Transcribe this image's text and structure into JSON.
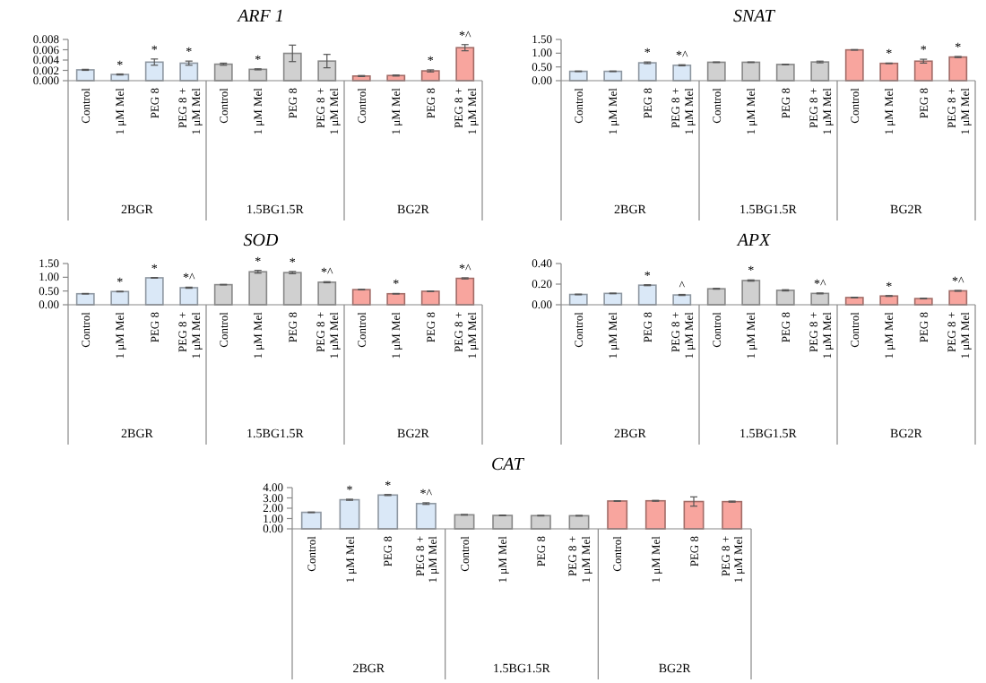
{
  "chart_data": [
    {
      "type": "bar",
      "title": "ARF 1",
      "categories": [
        "Control",
        "1 μM Mel",
        "PEG 8",
        "PEG 8 + 1 μM Mel",
        "Control",
        "1 μM Mel",
        "PEG 8",
        "PEG 8 + 1 μM Mel",
        "Control",
        "1 μM Mel",
        "PEG 8",
        "PEG 8 + 1 μM Mel"
      ],
      "values": [
        0.0021,
        0.0012,
        0.0036,
        0.0034,
        0.0032,
        0.0022,
        0.0053,
        0.0038,
        0.0009,
        0.001,
        0.0019,
        0.0064
      ],
      "errors": [
        0.0001,
        0.0001,
        0.0006,
        0.0004,
        0.0002,
        0.0001,
        0.0016,
        0.0013,
        0.0001,
        0.0001,
        0.0002,
        0.0006
      ],
      "value_labels": [
        null,
        "*",
        "*",
        "*",
        null,
        "*",
        null,
        null,
        null,
        null,
        "*",
        "*^"
      ],
      "colors": [
        "#dae8f7",
        "#dae8f7",
        "#dae8f7",
        "#dae8f7",
        "#d0d0d0",
        "#d0d0d0",
        "#d0d0d0",
        "#d0d0d0",
        "#f8a59e",
        "#f8a59e",
        "#f8a59e",
        "#f8a59e"
      ],
      "ylim": [
        0,
        0.008
      ],
      "yticks": [
        {
          "value": 0,
          "label": "0.000"
        },
        {
          "value": 0.002,
          "label": "0.002"
        },
        {
          "value": 0.004,
          "label": "0.004"
        },
        {
          "value": 0.006,
          "label": "0.006"
        },
        {
          "value": 0.008,
          "label": "0.008"
        }
      ],
      "annotations": [
        "2BGR",
        "1.5BG1.5R",
        "BG2R"
      ]
    },
    {
      "type": "bar",
      "title": "SNAT",
      "categories": [
        "Control",
        "1 μM Mel",
        "PEG 8",
        "PEG 8 + 1 μM Mel",
        "Control",
        "1 μM Mel",
        "PEG 8",
        "PEG 8 + 1 μM Mel",
        "Control",
        "1 μM Mel",
        "PEG 8",
        "PEG 8 + 1 μM Mel"
      ],
      "values": [
        0.34,
        0.34,
        0.65,
        0.56,
        0.67,
        0.67,
        0.59,
        0.68,
        1.12,
        0.63,
        0.71,
        0.86
      ],
      "errors": [
        0.01,
        0.01,
        0.03,
        0.02,
        0.01,
        0.01,
        0.01,
        0.03,
        0.01,
        0.01,
        0.07,
        0.02
      ],
      "value_labels": [
        null,
        null,
        "*",
        "*^",
        null,
        null,
        null,
        null,
        null,
        "*",
        "*",
        "*"
      ],
      "colors": [
        "#dae8f7",
        "#dae8f7",
        "#dae8f7",
        "#dae8f7",
        "#d0d0d0",
        "#d0d0d0",
        "#d0d0d0",
        "#d0d0d0",
        "#f8a59e",
        "#f8a59e",
        "#f8a59e",
        "#f8a59e"
      ],
      "ylim": [
        0,
        1.5
      ],
      "yticks": [
        {
          "value": 0,
          "label": "0.00"
        },
        {
          "value": 0.5,
          "label": "0.50"
        },
        {
          "value": 1,
          "label": "1.00"
        },
        {
          "value": 1.5,
          "label": "1.50"
        }
      ],
      "annotations": [
        "2BGR",
        "1.5BG1.5R",
        "BG2R"
      ]
    },
    {
      "type": "bar",
      "title": "SOD",
      "categories": [
        "Control",
        "1 μM Mel",
        "PEG 8",
        "PEG 8 + 1 μM Mel",
        "Control",
        "1 μM Mel",
        "PEG 8",
        "PEG 8 + 1 μM Mel",
        "Control",
        "1 μM Mel",
        "PEG 8",
        "PEG 8 + 1 μM Mel"
      ],
      "values": [
        0.4,
        0.48,
        0.98,
        0.62,
        0.73,
        1.2,
        1.17,
        0.82,
        0.55,
        0.4,
        0.49,
        0.96
      ],
      "errors": [
        0.01,
        0.01,
        0.01,
        0.02,
        0.01,
        0.05,
        0.04,
        0.02,
        0.01,
        0.01,
        0.01,
        0.02
      ],
      "value_labels": [
        null,
        "*",
        "*",
        "*^",
        null,
        "*",
        "*",
        "*^",
        null,
        "*",
        null,
        "*^"
      ],
      "colors": [
        "#dae8f7",
        "#dae8f7",
        "#dae8f7",
        "#dae8f7",
        "#d0d0d0",
        "#d0d0d0",
        "#d0d0d0",
        "#d0d0d0",
        "#f8a59e",
        "#f8a59e",
        "#f8a59e",
        "#f8a59e"
      ],
      "ylim": [
        0,
        1.5
      ],
      "yticks": [
        {
          "value": 0,
          "label": "0.00"
        },
        {
          "value": 0.5,
          "label": "0.50"
        },
        {
          "value": 1,
          "label": "1.00"
        },
        {
          "value": 1.5,
          "label": "1.50"
        }
      ],
      "annotations": [
        "2BGR",
        "1.5BG1.5R",
        "BG2R"
      ]
    },
    {
      "type": "bar",
      "title": "APX",
      "categories": [
        "Control",
        "1 μM Mel",
        "PEG 8",
        "PEG 8 + 1 μM Mel",
        "Control",
        "1 μM Mel",
        "PEG 8",
        "PEG 8 + 1 μM Mel",
        "Control",
        "1 μM Mel",
        "PEG 8",
        "PEG 8 + 1 μM Mel"
      ],
      "values": [
        0.1,
        0.11,
        0.19,
        0.095,
        0.155,
        0.235,
        0.14,
        0.11,
        0.07,
        0.085,
        0.06,
        0.135
      ],
      "errors": [
        0.003,
        0.003,
        0.005,
        0.005,
        0.004,
        0.006,
        0.006,
        0.004,
        0.003,
        0.004,
        0.003,
        0.004
      ],
      "value_labels": [
        null,
        null,
        "*",
        "^",
        null,
        "*",
        null,
        "*^",
        null,
        "*",
        null,
        "*^"
      ],
      "colors": [
        "#dae8f7",
        "#dae8f7",
        "#dae8f7",
        "#dae8f7",
        "#d0d0d0",
        "#d0d0d0",
        "#d0d0d0",
        "#d0d0d0",
        "#f8a59e",
        "#f8a59e",
        "#f8a59e",
        "#f8a59e"
      ],
      "ylim": [
        0,
        0.4
      ],
      "yticks": [
        {
          "value": 0,
          "label": "0.00"
        },
        {
          "value": 0.2,
          "label": "0.20"
        },
        {
          "value": 0.4,
          "label": "0.40"
        }
      ],
      "annotations": [
        "2BGR",
        "1.5BG1.5R",
        "BG2R"
      ]
    },
    {
      "type": "bar",
      "title": "CAT",
      "categories": [
        "Control",
        "1 μM Mel",
        "PEG 8",
        "PEG 8 + 1 μM Mel",
        "Control",
        "1 μM Mel",
        "PEG 8",
        "PEG 8 + 1 μM Mel",
        "Control",
        "1 μM Mel",
        "PEG 8",
        "PEG 8 + 1 μM Mel"
      ],
      "values": [
        1.6,
        2.82,
        3.28,
        2.45,
        1.36,
        1.3,
        1.28,
        1.27,
        2.7,
        2.72,
        2.65,
        2.64
      ],
      "errors": [
        0.03,
        0.05,
        0.05,
        0.08,
        0.03,
        0.03,
        0.03,
        0.03,
        0.03,
        0.04,
        0.45,
        0.05
      ],
      "value_labels": [
        null,
        "*",
        "*",
        "*^",
        null,
        null,
        null,
        null,
        null,
        null,
        null,
        null
      ],
      "colors": [
        "#dae8f7",
        "#dae8f7",
        "#dae8f7",
        "#dae8f7",
        "#d0d0d0",
        "#d0d0d0",
        "#d0d0d0",
        "#d0d0d0",
        "#f8a59e",
        "#f8a59e",
        "#f8a59e",
        "#f8a59e"
      ],
      "ylim": [
        0,
        4
      ],
      "yticks": [
        {
          "value": 0,
          "label": "0.00"
        },
        {
          "value": 1,
          "label": "1.00"
        },
        {
          "value": 2,
          "label": "2.00"
        },
        {
          "value": 3,
          "label": "3.00"
        },
        {
          "value": 4,
          "label": "4.00"
        }
      ],
      "annotations": [
        "2BGR",
        "1.5BG1.5R",
        "BG2R"
      ]
    }
  ]
}
